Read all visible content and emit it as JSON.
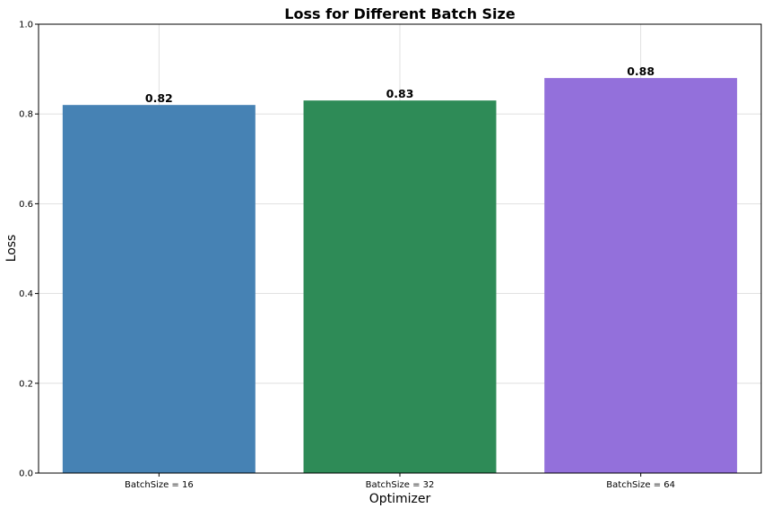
{
  "chart_data": {
    "type": "bar",
    "title": "Loss for Different Batch Size",
    "xlabel": "Optimizer",
    "ylabel": "Loss",
    "categories": [
      "BatchSize = 16",
      "BatchSize = 32",
      "BatchSize = 64"
    ],
    "values": [
      0.82,
      0.83,
      0.88
    ],
    "value_labels": [
      "0.82",
      "0.83",
      "0.88"
    ],
    "colors": [
      "#4682b4",
      "#2e8b57",
      "#9370db"
    ],
    "ylim": [
      0,
      1.0
    ],
    "yticks": [
      0.0,
      0.2,
      0.4,
      0.6,
      0.8,
      1.0
    ],
    "ytick_labels": [
      "0.0",
      "0.2",
      "0.4",
      "0.6",
      "0.8",
      "1.0"
    ],
    "grid": true
  }
}
